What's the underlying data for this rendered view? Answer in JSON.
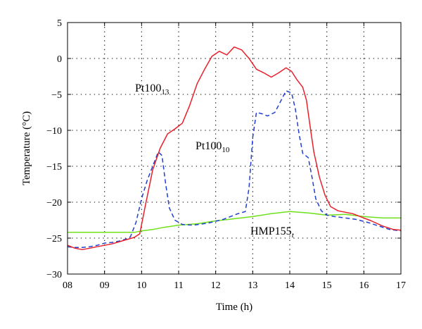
{
  "chart_data": {
    "type": "line",
    "title": "",
    "xlabel": "Time (h)",
    "ylabel": "Temperature (°C)",
    "xlim": [
      8,
      17
    ],
    "ylim": [
      -30,
      5
    ],
    "grid": true,
    "x_ticks": [
      8,
      9,
      10,
      11,
      12,
      13,
      14,
      15,
      16,
      17
    ],
    "x_tick_labels": [
      "08",
      "09",
      "10",
      "11",
      "12",
      "13",
      "14",
      "15",
      "16",
      "17"
    ],
    "y_ticks": [
      -30,
      -25,
      -20,
      -15,
      -10,
      -5,
      0,
      5
    ],
    "y_tick_labels": [
      "−30",
      "−25",
      "−20",
      "−15",
      "−10",
      "−5",
      "0",
      "5"
    ],
    "series": [
      {
        "name": "Pt100_13",
        "label_base": "Pt100",
        "label_sub": "13",
        "color": "#e8202a",
        "style": "solid",
        "x": [
          8.0,
          8.2,
          8.4,
          8.6,
          8.8,
          9.0,
          9.2,
          9.4,
          9.6,
          9.8,
          9.95,
          10.1,
          10.3,
          10.5,
          10.7,
          10.9,
          11.1,
          11.3,
          11.5,
          11.7,
          11.9,
          12.1,
          12.3,
          12.5,
          12.7,
          12.9,
          13.1,
          13.3,
          13.5,
          13.7,
          13.9,
          14.05,
          14.2,
          14.35,
          14.45,
          14.55,
          14.65,
          14.8,
          14.95,
          15.1,
          15.3,
          15.5,
          15.7,
          15.9,
          16.2,
          16.5,
          16.8,
          17.0
        ],
        "values": [
          -26.0,
          -26.4,
          -26.6,
          -26.4,
          -26.2,
          -26.0,
          -25.8,
          -25.5,
          -25.2,
          -24.9,
          -24.4,
          -20.5,
          -15.5,
          -12.5,
          -10.5,
          -9.8,
          -9.0,
          -6.5,
          -3.5,
          -1.5,
          0.3,
          1.0,
          0.5,
          1.6,
          1.2,
          0.0,
          -1.5,
          -2.0,
          -2.6,
          -2.0,
          -1.3,
          -1.8,
          -3.0,
          -4.0,
          -5.8,
          -9.5,
          -13.0,
          -16.5,
          -19.0,
          -20.6,
          -21.2,
          -21.4,
          -21.6,
          -22.0,
          -22.6,
          -23.3,
          -23.8,
          -23.9
        ]
      },
      {
        "name": "Pt100_10",
        "label_base": "Pt100",
        "label_sub": "10",
        "color": "#1f3fd0",
        "style": "dashed",
        "x": [
          8.0,
          8.2,
          8.4,
          8.6,
          8.8,
          9.0,
          9.2,
          9.4,
          9.6,
          9.7,
          9.85,
          10.0,
          10.15,
          10.3,
          10.45,
          10.55,
          10.65,
          10.75,
          10.9,
          11.1,
          11.4,
          11.8,
          12.2,
          12.6,
          12.8,
          12.9,
          13.0,
          13.1,
          13.25,
          13.4,
          13.6,
          13.75,
          13.9,
          14.05,
          14.15,
          14.25,
          14.35,
          14.5,
          14.6,
          14.7,
          14.85,
          15.0,
          15.2,
          15.5,
          15.8,
          16.1,
          16.4,
          16.7,
          17.0
        ],
        "values": [
          -26.2,
          -26.3,
          -26.3,
          -26.2,
          -26.0,
          -25.7,
          -25.6,
          -25.4,
          -25.1,
          -24.8,
          -22.8,
          -19.5,
          -17.0,
          -15.0,
          -13.0,
          -13.5,
          -17.5,
          -20.8,
          -22.5,
          -23.1,
          -23.2,
          -22.9,
          -22.4,
          -21.6,
          -21.3,
          -18.0,
          -11.0,
          -7.5,
          -7.7,
          -8.0,
          -7.5,
          -6.0,
          -4.5,
          -4.8,
          -7.0,
          -10.5,
          -13.2,
          -13.8,
          -16.5,
          -19.5,
          -21.2,
          -21.8,
          -22.0,
          -22.2,
          -22.4,
          -22.8,
          -23.3,
          -23.8,
          -24.0
        ]
      },
      {
        "name": "HMP155_t",
        "label_base": "HMP155",
        "label_sub": "t",
        "color": "#6fe01a",
        "style": "solid",
        "x": [
          8.0,
          8.5,
          9.0,
          9.5,
          9.8,
          10.0,
          10.3,
          10.6,
          11.0,
          11.5,
          12.0,
          12.5,
          13.0,
          13.5,
          14.0,
          14.5,
          15.0,
          15.5,
          16.0,
          16.5,
          17.0
        ],
        "values": [
          -24.2,
          -24.2,
          -24.2,
          -24.2,
          -24.2,
          -24.0,
          -23.8,
          -23.5,
          -23.2,
          -23.0,
          -22.6,
          -22.3,
          -22.0,
          -21.6,
          -21.3,
          -21.5,
          -21.8,
          -21.7,
          -22.0,
          -22.2,
          -22.2
        ]
      }
    ]
  }
}
